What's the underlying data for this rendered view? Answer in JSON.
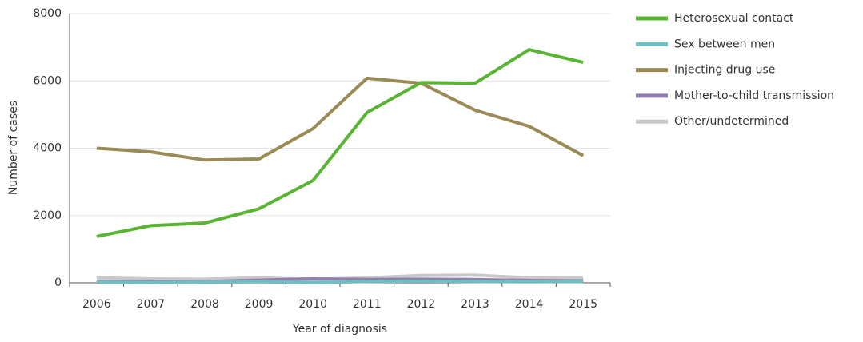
{
  "chart_data": {
    "type": "line",
    "xlabel": "Year of diagnosis",
    "ylabel": "Number of cases",
    "categories": [
      "2006",
      "2007",
      "2008",
      "2009",
      "2010",
      "2011",
      "2012",
      "2013",
      "2014",
      "2015"
    ],
    "series": [
      {
        "name": "Heterosexual contact",
        "color": "#5ab434",
        "values": [
          1380,
          1700,
          1780,
          2200,
          3040,
          5060,
          5950,
          5930,
          6930,
          6550
        ]
      },
      {
        "name": "Sex between men",
        "color": "#6cc0c0",
        "values": [
          20,
          10,
          20,
          30,
          10,
          40,
          50,
          40,
          30,
          40
        ]
      },
      {
        "name": "Injecting drug use",
        "color": "#9b8a55",
        "values": [
          4000,
          3890,
          3650,
          3680,
          4580,
          6080,
          5930,
          5130,
          4650,
          3780
        ]
      },
      {
        "name": "Mother-to-child transmission",
        "color": "#8f7fb0",
        "values": [
          50,
          30,
          40,
          80,
          120,
          100,
          110,
          100,
          70,
          60
        ]
      },
      {
        "name": "Other/undetermined",
        "color": "#c8c8c8",
        "values": [
          150,
          120,
          110,
          150,
          100,
          150,
          220,
          230,
          150,
          140
        ]
      }
    ],
    "ylim": [
      0,
      8000
    ],
    "yticks": [
      0,
      2000,
      4000,
      6000,
      8000
    ],
    "grid": true,
    "legend": "right"
  }
}
